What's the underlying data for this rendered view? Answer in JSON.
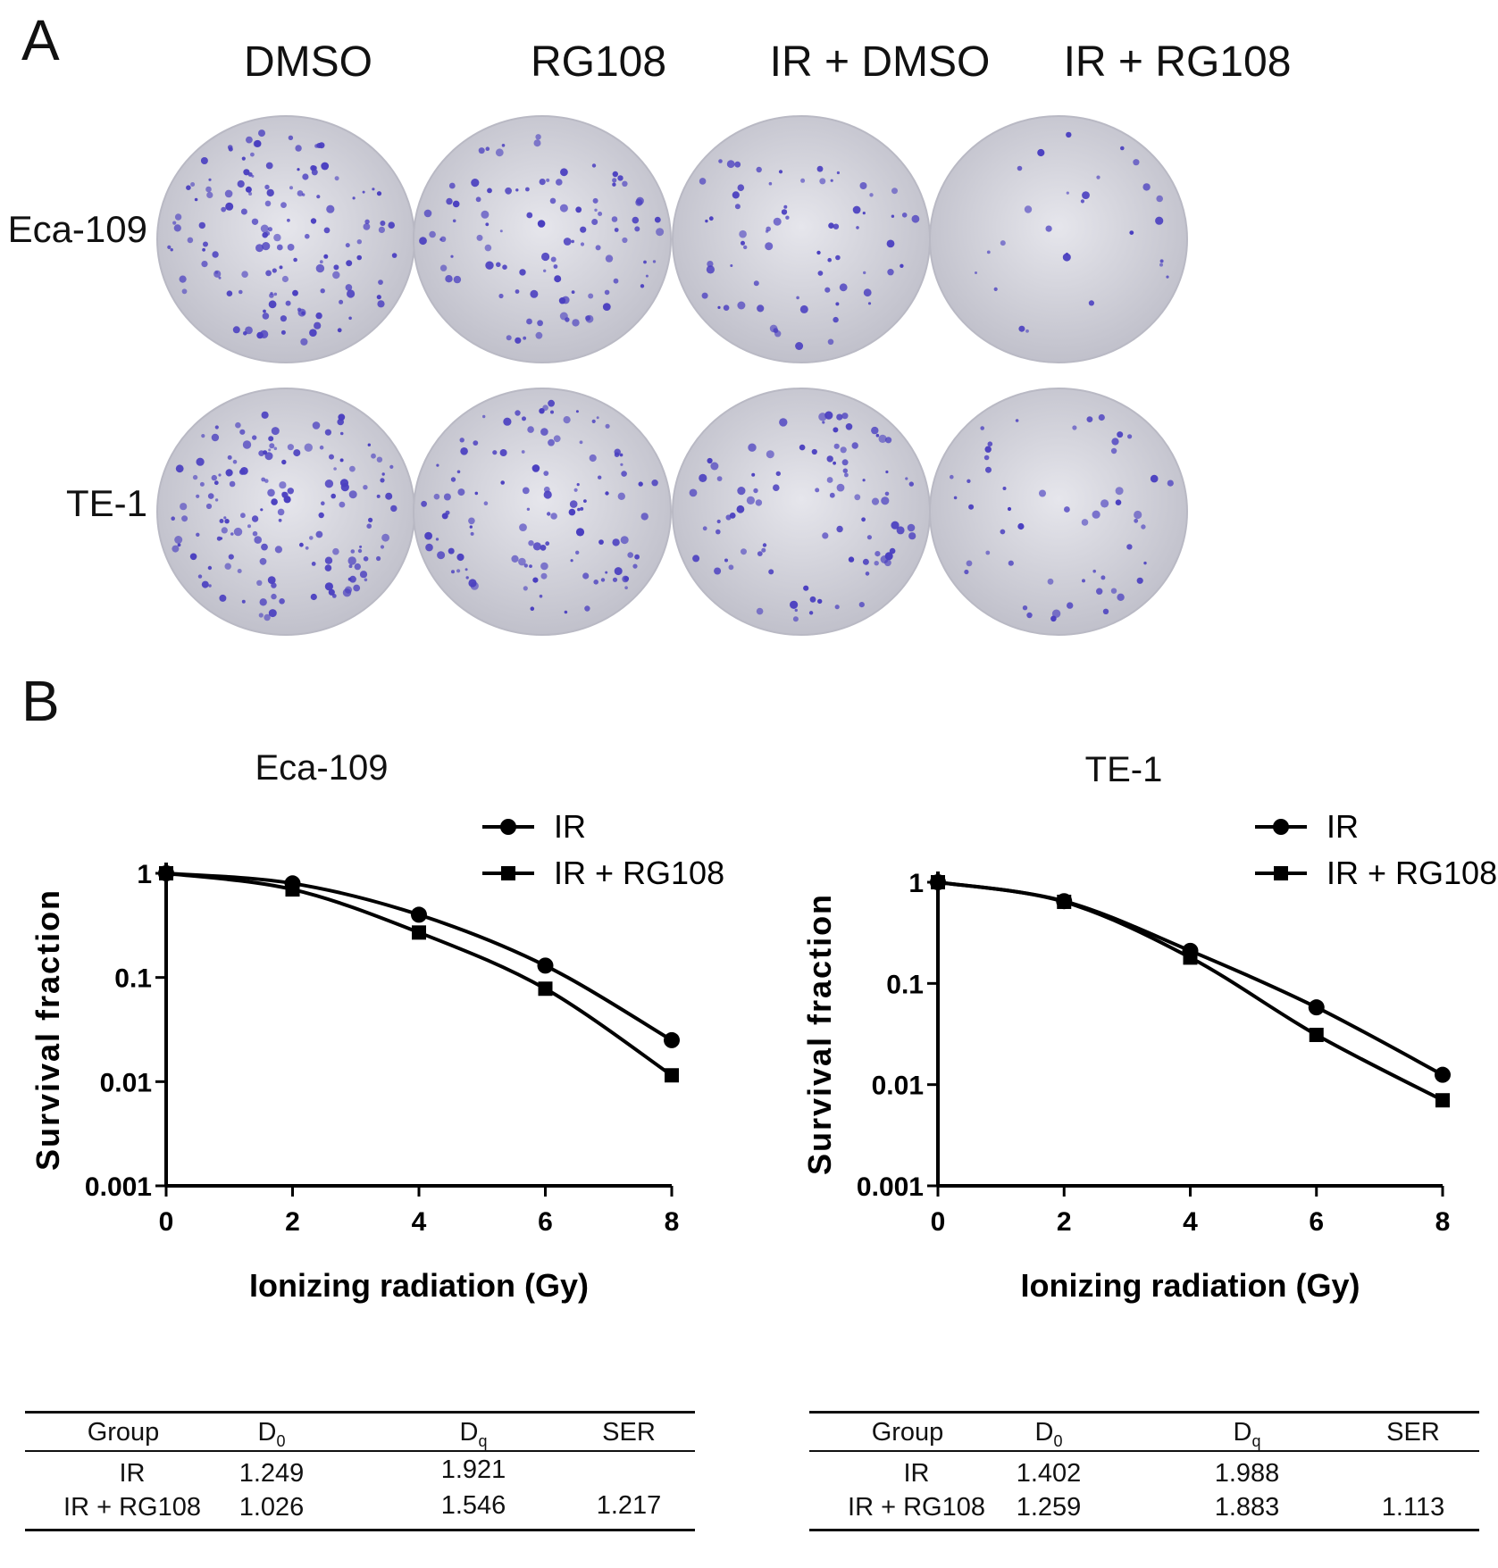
{
  "panel_a": {
    "label": "A",
    "columns": [
      "DMSO",
      "RG108",
      "IR + DMSO",
      "IR + RG108"
    ],
    "rows": [
      {
        "label": "Eca-109",
        "colony_density": [
          0.9,
          0.65,
          0.45,
          0.18
        ]
      },
      {
        "label": "TE-1",
        "colony_density": [
          1.0,
          0.75,
          0.6,
          0.35
        ]
      }
    ],
    "colors": {
      "plate": "#d4d4dc",
      "plate_edge": "#b9b9c4",
      "colony": "#4a3fc0"
    }
  },
  "panel_b": {
    "label": "B"
  },
  "chart_data": [
    {
      "type": "line",
      "title": "Eca-109",
      "xlabel": "Ionizing radiation (Gy)",
      "ylabel": "Survival fraction",
      "yscale": "log",
      "ylim": [
        0.001,
        1
      ],
      "xlim": [
        0,
        8
      ],
      "xticks": [
        "0",
        "2",
        "4",
        "6",
        "8"
      ],
      "yticks": [
        "0.001",
        "0.01",
        "0.1",
        "1"
      ],
      "legend_position": "top-right",
      "x": [
        0,
        2,
        4,
        6,
        8
      ],
      "series": [
        {
          "name": "IR",
          "marker": "circle",
          "values": [
            1.0,
            0.8,
            0.4,
            0.13,
            0.025
          ]
        },
        {
          "name": "IR + RG108",
          "marker": "square",
          "values": [
            1.0,
            0.7,
            0.27,
            0.078,
            0.0115
          ]
        }
      ]
    },
    {
      "type": "line",
      "title": "TE-1",
      "xlabel": "Ionizing radiation (Gy)",
      "ylabel": "Survival fraction",
      "yscale": "log",
      "ylim": [
        0.001,
        1
      ],
      "xlim": [
        0,
        8
      ],
      "xticks": [
        "0",
        "2",
        "4",
        "6",
        "8"
      ],
      "yticks": [
        "0.001",
        "0.01",
        "0.1",
        "1"
      ],
      "legend_position": "top-right",
      "x": [
        0,
        2,
        4,
        6,
        8
      ],
      "series": [
        {
          "name": "IR",
          "marker": "circle",
          "values": [
            1.0,
            0.65,
            0.21,
            0.058,
            0.0125
          ]
        },
        {
          "name": "IR + RG108",
          "marker": "square",
          "values": [
            1.0,
            0.64,
            0.18,
            0.031,
            0.007
          ]
        }
      ]
    },
    {
      "type": "table",
      "columns": [
        "Group",
        "D0",
        "Dq",
        "SER"
      ],
      "rows": [
        [
          "IR",
          "1.249",
          "1.921",
          ""
        ],
        [
          "IR + RG108",
          "1.026",
          "1.546",
          "1.217"
        ]
      ]
    },
    {
      "type": "table",
      "columns": [
        "Group",
        "D0",
        "Dq",
        "SER"
      ],
      "rows": [
        [
          "IR",
          "1.402",
          "1.988",
          ""
        ],
        [
          "IR + RG108",
          "1.259",
          "1.883",
          "1.113"
        ]
      ]
    }
  ],
  "table_headers": {
    "group": "Group",
    "d": "D",
    "sub_0": "0",
    "sub_q": "q",
    "ser": "SER"
  }
}
